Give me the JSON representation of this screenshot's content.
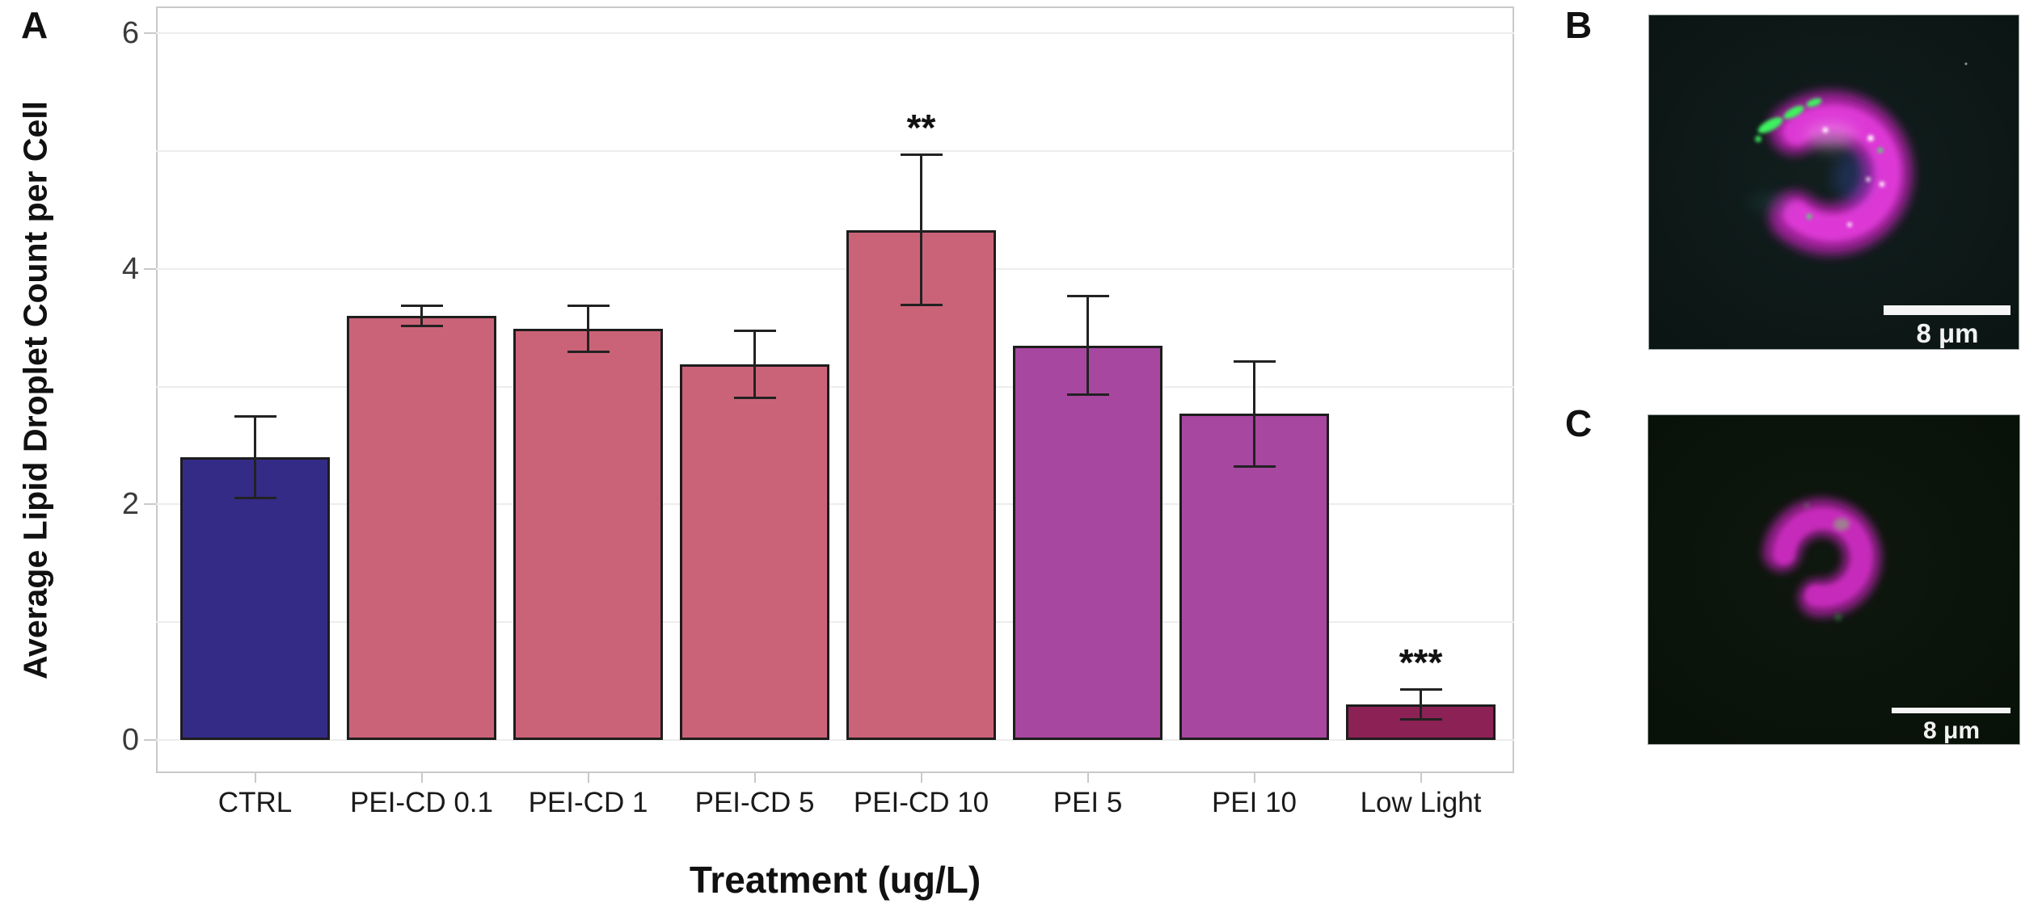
{
  "panels": {
    "a": {
      "label": "A",
      "chart_data": {
        "type": "bar",
        "title": "",
        "xlabel": "Treatment (ug/L)",
        "ylabel": "Average Lipid Droplet Count per Cell",
        "categories": [
          "CTRL",
          "PEI-CD 0.1",
          "PEI-CD 1",
          "PEI-CD 5",
          "PEI-CD 10",
          "PEI 5",
          "PEI 10",
          "Low Light"
        ],
        "values": [
          2.4,
          3.6,
          3.49,
          3.19,
          4.33,
          3.35,
          2.77,
          0.3
        ],
        "errors": [
          0.35,
          0.09,
          0.2,
          0.29,
          0.64,
          0.42,
          0.45,
          0.13
        ],
        "bar_colors": [
          "#342b87",
          "#cb6378",
          "#cb6378",
          "#cb6378",
          "#cb6378",
          "#a847a0",
          "#a847a0",
          "#8c2155"
        ],
        "annotations": [
          {
            "category": "PEI-CD 10",
            "text": "**"
          },
          {
            "category": "Low Light",
            "text": "***"
          }
        ],
        "yticks": [
          0,
          2,
          4,
          6
        ],
        "gridline_values": [
          0,
          1,
          2,
          3,
          4,
          5,
          6
        ],
        "ylim": [
          -0.28,
          6.23
        ],
        "grid": true,
        "legend_position": "none"
      }
    },
    "b": {
      "label": "B",
      "scale_bar_text": "8 μm"
    },
    "c": {
      "label": "C",
      "scale_bar_text": "8 μm"
    }
  }
}
